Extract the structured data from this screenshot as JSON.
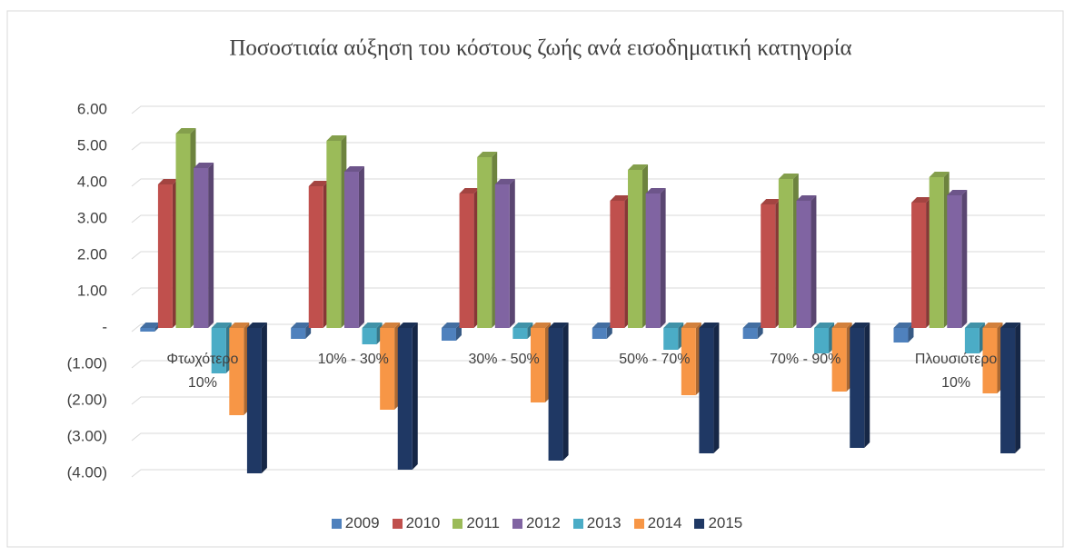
{
  "chart_data": {
    "type": "bar3d",
    "title": "Ποσοστιαία αύξηση του κόστους ζωής ανά εισοδηματική κατηγορία",
    "categories": [
      "Φτωχότερο 10%",
      "10% - 30%",
      "30% - 50%",
      "50% - 70%",
      "70% - 90%",
      "Πλουσιότερο 10%"
    ],
    "series": [
      {
        "name": "2009",
        "color": "#4f81bd",
        "values": [
          -0.1,
          -0.3,
          -0.35,
          -0.3,
          -0.3,
          -0.4
        ]
      },
      {
        "name": "2010",
        "color": "#c0504d",
        "values": [
          3.95,
          3.9,
          3.7,
          3.5,
          3.4,
          3.45
        ]
      },
      {
        "name": "2011",
        "color": "#9bbb59",
        "values": [
          5.35,
          5.15,
          4.7,
          4.35,
          4.1,
          4.15
        ]
      },
      {
        "name": "2012",
        "color": "#8064a2",
        "values": [
          4.4,
          4.3,
          3.95,
          3.7,
          3.5,
          3.65
        ]
      },
      {
        "name": "2013",
        "color": "#4bacc6",
        "values": [
          -1.25,
          -0.45,
          -0.3,
          -0.6,
          -0.7,
          -0.7
        ]
      },
      {
        "name": "2014",
        "color": "#f79646",
        "values": [
          -2.4,
          -2.25,
          -2.05,
          -1.85,
          -1.75,
          -1.8
        ]
      },
      {
        "name": "2015",
        "color": "#1f3864",
        "values": [
          -4.0,
          -3.9,
          -3.65,
          -3.45,
          -3.3,
          -3.45
        ]
      }
    ],
    "ylim": [
      -4,
      6
    ],
    "yticks": [
      {
        "value": 6,
        "label": "6.00"
      },
      {
        "value": 5,
        "label": "5.00"
      },
      {
        "value": 4,
        "label": "4.00"
      },
      {
        "value": 3,
        "label": "3.00"
      },
      {
        "value": 2,
        "label": "2.00"
      },
      {
        "value": 1,
        "label": "1.00"
      },
      {
        "value": 0,
        "label": "-"
      },
      {
        "value": -1,
        "label": "(1.00)"
      },
      {
        "value": -2,
        "label": "(2.00)"
      },
      {
        "value": -3,
        "label": "(3.00)"
      },
      {
        "value": -4,
        "label": "(4.00)"
      }
    ],
    "grid": true,
    "legend": "bottom"
  }
}
